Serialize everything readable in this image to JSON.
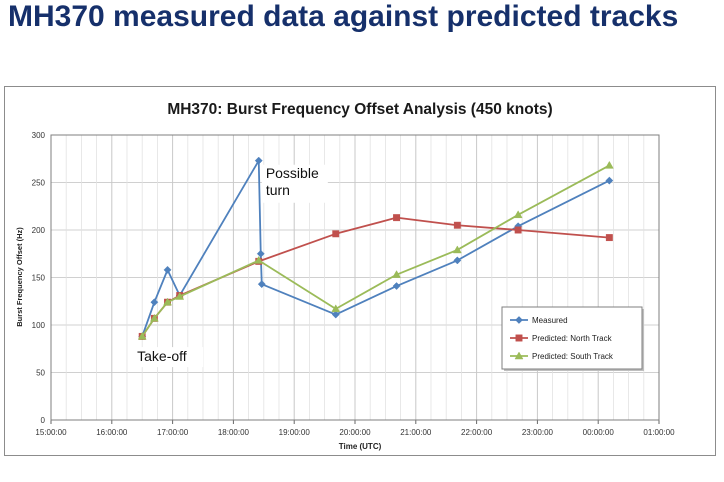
{
  "page_title": "MH370 measured data against predicted tracks",
  "chart_data": {
    "type": "line",
    "title": "MH370: Burst Frequency Offset Analysis (450 knots)",
    "xlabel": "Time (UTC)",
    "ylabel": "Burst Frequency Offset (Hz)",
    "ylim": [
      0,
      300
    ],
    "y_ticks": [
      "0",
      "50",
      "100",
      "150",
      "200",
      "250",
      "300"
    ],
    "xlim": [
      "15:00:00",
      "25:00:00"
    ],
    "x_ticks": [
      "15:00:00",
      "16:00:00",
      "17:00:00",
      "18:00:00",
      "19:00:00",
      "20:00:00",
      "21:00:00",
      "22:00:00",
      "23:00:00",
      "00:00:00",
      "01:00:00"
    ],
    "grid": true,
    "legend_position": "bottom-right",
    "series": [
      {
        "name": "Measured",
        "color": "#4f81bd",
        "marker": "diamond",
        "x": [
          "16:30:00",
          "16:42:00",
          "16:55:00",
          "17:07:00",
          "18:25:00",
          "18:27:00",
          "18:28:00",
          "19:41:00",
          "20:41:00",
          "21:41:00",
          "22:41:00",
          "00:11:00"
        ],
        "y": [
          88,
          124,
          158,
          131,
          273,
          175,
          143,
          111,
          141,
          168,
          204,
          252
        ]
      },
      {
        "name": "Predicted: North Track",
        "color": "#c0504d",
        "marker": "square",
        "x": [
          "16:30:00",
          "16:42:00",
          "16:55:00",
          "17:07:00",
          "18:25:00",
          "19:41:00",
          "20:41:00",
          "21:41:00",
          "22:41:00",
          "00:11:00"
        ],
        "y": [
          88,
          107,
          124,
          131,
          167,
          196,
          213,
          205,
          200,
          192
        ]
      },
      {
        "name": "Predicted: South Track",
        "color": "#9bbb59",
        "marker": "triangle",
        "x": [
          "16:30:00",
          "16:42:00",
          "16:55:00",
          "17:07:00",
          "18:25:00",
          "19:41:00",
          "20:41:00",
          "21:41:00",
          "22:41:00",
          "00:11:00"
        ],
        "y": [
          88,
          107,
          124,
          130,
          168,
          117,
          153,
          179,
          216,
          268
        ]
      }
    ],
    "annotations": [
      {
        "text": "Possible turn",
        "x": "18:32:00",
        "y": 255
      },
      {
        "text": "Take-off",
        "x": "16:25:00",
        "y": 62
      }
    ]
  }
}
